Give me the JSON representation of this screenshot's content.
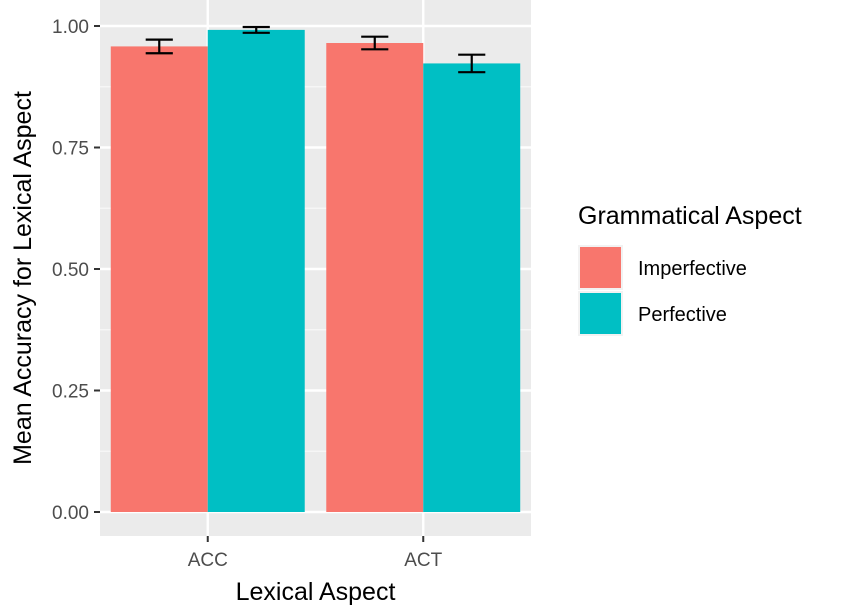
{
  "chart_data": {
    "type": "bar",
    "categories": [
      "ACC",
      "ACT"
    ],
    "series": [
      {
        "name": "Imperfective",
        "color": "#F8766D",
        "values": [
          0.958,
          0.965
        ],
        "error": [
          0.014,
          0.013
        ]
      },
      {
        "name": "Perfective",
        "color": "#00BFC4",
        "values": [
          0.992,
          0.923
        ],
        "error": [
          0.006,
          0.018
        ]
      }
    ],
    "xlabel": "Lexical Aspect",
    "ylabel": "Mean Accuracy for Lexical Aspect",
    "ylim": [
      0,
      1.0
    ],
    "yticks": [
      "0.00",
      "0.25",
      "0.50",
      "0.75",
      "1.00"
    ],
    "ytick_values": [
      0,
      0.25,
      0.5,
      0.75,
      1.0
    ],
    "legend": {
      "title": "Grammatical Aspect",
      "placement": "right"
    },
    "grid": true,
    "panel_background": "#EBEBEB"
  }
}
